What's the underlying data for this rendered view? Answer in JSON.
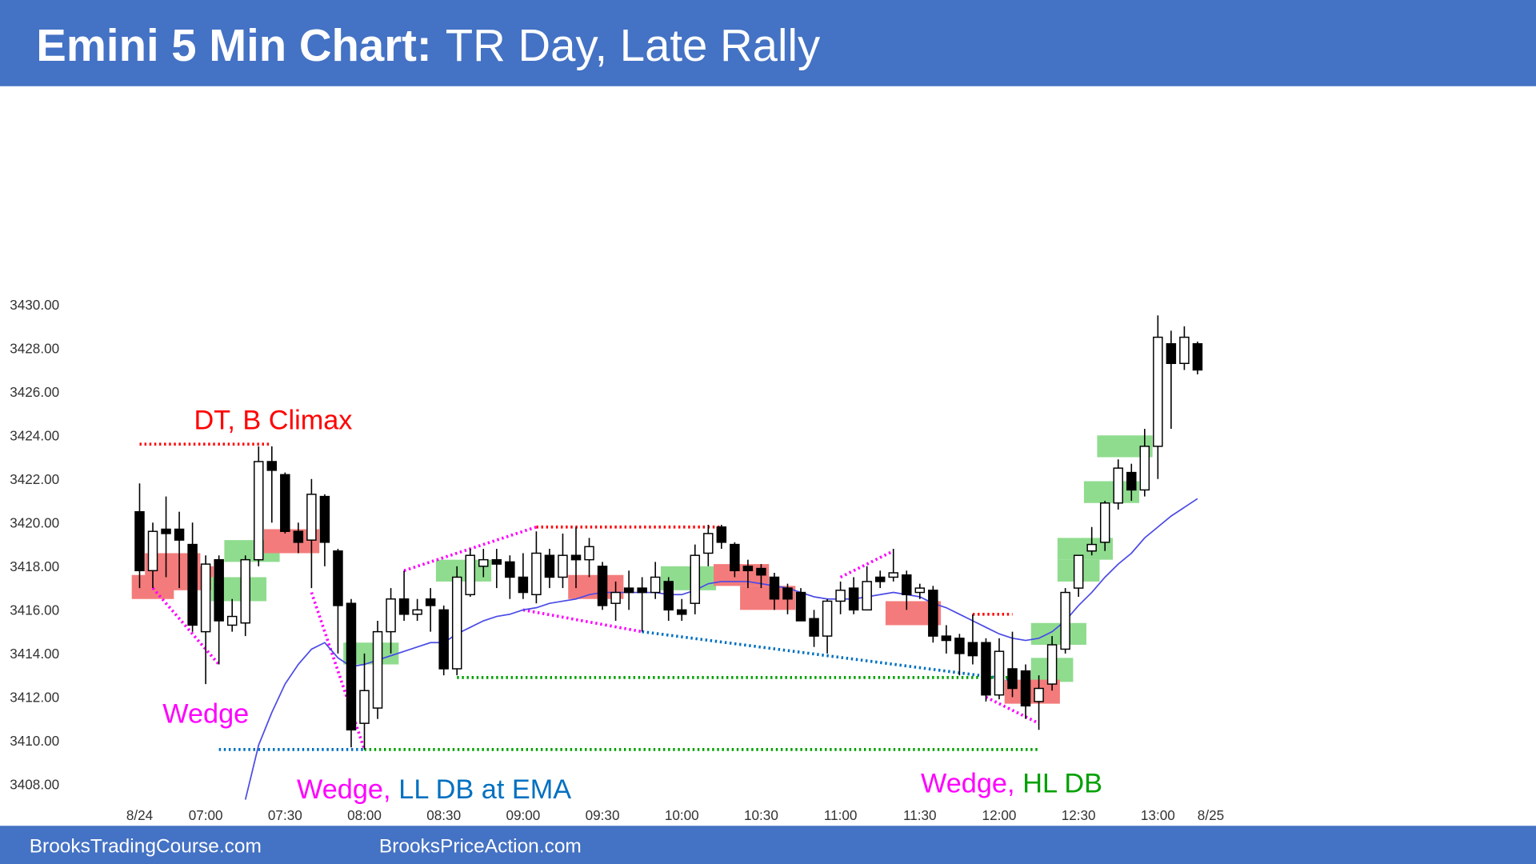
{
  "chart_data": {
    "type": "candlestick",
    "title": "Emini 5 Min Chart:",
    "subtitle": "TR Day, Late Rally",
    "categories": [
      "8/24",
      null,
      null,
      null,
      null,
      "07:00",
      null,
      null,
      null,
      null,
      null,
      "07:30",
      null,
      null,
      null,
      null,
      null,
      "08:00",
      null,
      null,
      null,
      null,
      null,
      "08:30",
      null,
      null,
      null,
      null,
      null,
      "09:00",
      null,
      null,
      null,
      null,
      null,
      "09:30",
      null,
      null,
      null,
      null,
      null,
      "10:00",
      null,
      null,
      null,
      null,
      null,
      "10:30",
      null,
      null,
      null,
      null,
      null,
      "11:00",
      null,
      null,
      null,
      null,
      null,
      "11:30",
      null,
      null,
      null,
      null,
      null,
      "12:00",
      null,
      null,
      null,
      null,
      null,
      "12:30",
      null,
      null,
      null,
      null,
      null,
      "13:00",
      null,
      null,
      null,
      "8/25"
    ],
    "open": [
      3420.5,
      3417.8,
      3419.7,
      3419.7,
      3419,
      3415,
      3418.3,
      3415.3,
      3415.4,
      3418.3,
      3422.8,
      3422.2,
      3419.6,
      3419.2,
      3421.2,
      3418.7,
      3416.3,
      3410.8,
      3411.5,
      3415,
      3416.5,
      3415.8,
      3416.5,
      3416,
      3413.3,
      3416.7,
      3418,
      3418.3,
      3418.2,
      3417.5,
      3416.7,
      3418.5,
      3417.5,
      3418.5,
      3418.3,
      3418,
      3416.3,
      3417,
      3417,
      3416.8,
      3417.3,
      3416,
      3416.3,
      3418.6,
      3419.8,
      3419,
      3418,
      3417.9,
      3417.5,
      3417,
      3416.8,
      3415.6,
      3414.8,
      3416.4,
      3417,
      3416,
      3417.5,
      3417.5,
      3417.6,
      3416.8,
      3416.9,
      3414.8,
      3414.7,
      3414.5,
      3414.5,
      3412.1,
      3413.3,
      3413.2,
      3411.8,
      3412.6,
      3414.2,
      3417,
      3418.7,
      3419.1,
      3420.9,
      3422.3,
      3421.5,
      3423.5,
      3428.2,
      3427.3,
      3428.2,
      null
    ],
    "high": [
      3421.8,
      3420,
      3421.2,
      3420.5,
      3420,
      3418.5,
      3418.5,
      3416.5,
      3418.5,
      3423.5,
      3423.5,
      3422.3,
      3420,
      3422,
      3421.3,
      3418.8,
      3416.5,
      3414,
      3415.5,
      3417,
      3417.8,
      3416.5,
      3417,
      3416.2,
      3418,
      3418.8,
      3418.8,
      3418.8,
      3418.5,
      3418.6,
      3419.6,
      3418.8,
      3419.5,
      3419.8,
      3419.3,
      3418.2,
      3417.3,
      3417.8,
      3417.5,
      3418.2,
      3417.5,
      3416.5,
      3419,
      3419.9,
      3419.9,
      3419.1,
      3418.3,
      3418.1,
      3417.7,
      3417.2,
      3417,
      3416,
      3416.5,
      3417.3,
      3417.5,
      3418,
      3417.8,
      3418.8,
      3417.8,
      3417.2,
      3417.1,
      3415.3,
      3414.9,
      3415.8,
      3414.7,
      3414.7,
      3415,
      3413.5,
      3413,
      3414.8,
      3417,
      3418.5,
      3419.8,
      3421,
      3422.9,
      3422.7,
      3424.3,
      3429.5,
      3428.8,
      3429,
      3428.3,
      null
    ],
    "low": [
      3417,
      3417,
      3417.5,
      3417,
      3415,
      3412.6,
      3413.5,
      3415,
      3414.8,
      3418,
      3420,
      3419.5,
      3418.6,
      3417,
      3418,
      3414,
      3409.7,
      3409.6,
      3411,
      3414,
      3415.5,
      3415.5,
      3415,
      3413,
      3413,
      3416.6,
      3417.5,
      3417,
      3416.5,
      3416.5,
      3416.3,
      3417,
      3417,
      3417,
      3417.5,
      3416,
      3415.5,
      3416,
      3415,
      3416.5,
      3415.5,
      3415.5,
      3415.8,
      3418,
      3418.8,
      3417.5,
      3417,
      3417,
      3416,
      3415.8,
      3415.5,
      3414.3,
      3414,
      3415.8,
      3415.8,
      3416,
      3417,
      3417.3,
      3416,
      3416.5,
      3414.5,
      3414,
      3413,
      3413.5,
      3411.8,
      3411.9,
      3412,
      3411,
      3410.5,
      3412.3,
      3414,
      3416.6,
      3418.5,
      3418.7,
      3420.6,
      3421,
      3421.2,
      3422,
      3424.3,
      3427,
      3426.8,
      null
    ],
    "close": [
      3417.8,
      3419.6,
      3419.5,
      3419.2,
      3415.3,
      3418.1,
      3415.5,
      3415.7,
      3418.3,
      3422.8,
      3422.4,
      3419.6,
      3419.1,
      3421.3,
      3419.1,
      3416.2,
      3410.5,
      3412.3,
      3415,
      3416.5,
      3415.8,
      3416,
      3416.2,
      3413.3,
      3417.5,
      3418.5,
      3418.3,
      3418.1,
      3417.5,
      3416.8,
      3418.6,
      3417.5,
      3418.5,
      3418.3,
      3418.9,
      3416.2,
      3416.8,
      3416.8,
      3416.8,
      3417.5,
      3416,
      3415.8,
      3418.5,
      3419.5,
      3419.1,
      3417.8,
      3417.8,
      3417.6,
      3416.5,
      3416.5,
      3415.5,
      3414.8,
      3416.4,
      3416.9,
      3416,
      3417.3,
      3417.3,
      3417.7,
      3416.7,
      3417,
      3414.8,
      3414.6,
      3414,
      3413.9,
      3412.1,
      3414.1,
      3412.4,
      3411.6,
      3412.4,
      3414.4,
      3416.8,
      3418.5,
      3419,
      3420.9,
      3422.5,
      3421.5,
      3423.5,
      3428.5,
      3427.3,
      3428.5,
      3427,
      null
    ],
    "ema": [
      null,
      null,
      null,
      null,
      null,
      null,
      null,
      null,
      3407.3,
      3409.8,
      3411.3,
      3412.6,
      3413.5,
      3414.2,
      3414.5,
      3413.8,
      3413.4,
      3413.5,
      3413.7,
      3413.9,
      3414.1,
      3414.3,
      3414.5,
      3414.5,
      3414.9,
      3415.2,
      3415.5,
      3415.7,
      3415.8,
      3416,
      3416.1,
      3416.3,
      3416.4,
      3416.5,
      3416.7,
      3416.8,
      3416.8,
      3416.8,
      3416.8,
      3416.8,
      3416.7,
      3416.7,
      3416.9,
      3417.2,
      3417.3,
      3417.3,
      3417.3,
      3417.2,
      3417.1,
      3417,
      3416.8,
      3416.6,
      3416.5,
      3416.5,
      3416.5,
      3416.6,
      3416.7,
      3416.8,
      3416.7,
      3416.6,
      3416.3,
      3416.1,
      3415.8,
      3415.5,
      3415.2,
      3414.9,
      3414.7,
      3414.6,
      3414.7,
      3415,
      3415.5,
      3416.2,
      3416.8,
      3417.5,
      3418.1,
      3418.6,
      3419.3,
      3419.8,
      3420.3,
      3420.7,
      3421.1,
      null
    ],
    "ema_color": "#4b4be6",
    "up_color": "#ffffff",
    "down_color": "#000000",
    "ylim": [
      3407,
      3437
    ],
    "yticks": [
      {
        "value": 3408,
        "label": "3408.00"
      },
      {
        "value": 3410,
        "label": "3410.00"
      },
      {
        "value": 3412,
        "label": "3412.00"
      },
      {
        "value": 3414,
        "label": "3414.00"
      },
      {
        "value": 3416,
        "label": "3416.00"
      },
      {
        "value": 3418,
        "label": "3418.00"
      },
      {
        "value": 3420,
        "label": "3420.00"
      },
      {
        "value": 3422,
        "label": "3422.00"
      },
      {
        "value": 3424,
        "label": "3424.00"
      },
      {
        "value": 3426,
        "label": "3426.00"
      },
      {
        "value": 3428,
        "label": "3428.00"
      },
      {
        "value": 3430,
        "label": "3430.00"
      }
    ],
    "grid": false,
    "highlights": [
      {
        "from": 0,
        "to": 2,
        "low": 3416.5,
        "high": 3417.6,
        "color": "#f47b7b"
      },
      {
        "from": 1,
        "to": 4,
        "low": 3417.5,
        "high": 3418.6,
        "color": "#f47b7b"
      },
      {
        "from": 3,
        "to": 5,
        "low": 3416.9,
        "high": 3418,
        "color": "#f47b7b"
      },
      {
        "from": 6,
        "to": 9,
        "low": 3416.4,
        "high": 3417.5,
        "color": "#8fdc8f"
      },
      {
        "from": 7,
        "to": 10,
        "low": 3418.2,
        "high": 3419.2,
        "color": "#8fdc8f"
      },
      {
        "from": 10,
        "to": 13,
        "low": 3418.6,
        "high": 3419.7,
        "color": "#f47b7b"
      },
      {
        "from": 16,
        "to": 19,
        "low": 3413.5,
        "high": 3414.5,
        "color": "#8fdc8f"
      },
      {
        "from": 23,
        "to": 26,
        "low": 3417.3,
        "high": 3418.3,
        "color": "#8fdc8f"
      },
      {
        "from": 33,
        "to": 36,
        "low": 3416.5,
        "high": 3417.6,
        "color": "#f47b7b"
      },
      {
        "from": 40,
        "to": 43,
        "low": 3416.9,
        "high": 3418,
        "color": "#8fdc8f"
      },
      {
        "from": 44,
        "to": 47,
        "low": 3417.1,
        "high": 3418.1,
        "color": "#f47b7b"
      },
      {
        "from": 46,
        "to": 49,
        "low": 3416,
        "high": 3417.1,
        "color": "#f47b7b"
      },
      {
        "from": 57,
        "to": 60,
        "low": 3415.3,
        "high": 3416.4,
        "color": "#f47b7b"
      },
      {
        "from": 68,
        "to": 71,
        "low": 3414.4,
        "high": 3415.4,
        "color": "#8fdc8f"
      },
      {
        "from": 68,
        "to": 70,
        "low": 3412.7,
        "high": 3413.8,
        "color": "#8fdc8f"
      },
      {
        "from": 66,
        "to": 69,
        "low": 3411.7,
        "high": 3412.8,
        "color": "#f47b7b"
      },
      {
        "from": 70,
        "to": 72,
        "low": 3417.3,
        "high": 3418.3,
        "color": "#8fdc8f"
      },
      {
        "from": 70,
        "to": 73,
        "low": 3418.3,
        "high": 3419.3,
        "color": "#8fdc8f"
      },
      {
        "from": 72,
        "to": 75,
        "low": 3420.9,
        "high": 3421.9,
        "color": "#8fdc8f"
      },
      {
        "from": 73,
        "to": 76,
        "low": 3423,
        "high": 3424,
        "color": "#8fdc8f"
      }
    ],
    "lines": [
      {
        "from": [
          0,
          3423.6
        ],
        "to": [
          10,
          3423.6
        ],
        "color": "#ff0000"
      },
      {
        "from": [
          30,
          3419.8
        ],
        "to": [
          44,
          3419.8
        ],
        "color": "#ff0000"
      },
      {
        "from": [
          63,
          3415.8
        ],
        "to": [
          66,
          3415.8
        ],
        "color": "#ff0000"
      },
      {
        "from": [
          1,
          3417
        ],
        "to": [
          6,
          3413.5
        ],
        "color": "#ff00ff"
      },
      {
        "from": [
          13,
          3416.8
        ],
        "to": [
          17,
          3409.6
        ],
        "color": "#ff00ff"
      },
      {
        "from": [
          20,
          3417.8
        ],
        "to": [
          30,
          3419.8
        ],
        "color": "#ff00ff"
      },
      {
        "from": [
          29,
          3416
        ],
        "to": [
          38,
          3415
        ],
        "color": "#ff00ff"
      },
      {
        "from": [
          53,
          3417.5
        ],
        "to": [
          57,
          3418.7
        ],
        "color": "#ff00ff"
      },
      {
        "from": [
          64,
          3412
        ],
        "to": [
          68,
          3410.8
        ],
        "color": "#ff00ff"
      },
      {
        "from": [
          38,
          3415
        ],
        "to": [
          66,
          3412.8
        ],
        "color": "#0070c0"
      },
      {
        "from": [
          6,
          3409.6
        ],
        "to": [
          17,
          3409.6
        ],
        "color": "#0070c0"
      },
      {
        "from": [
          24,
          3412.9
        ],
        "to": [
          66,
          3412.9
        ],
        "color": "#00a000"
      },
      {
        "from": [
          17,
          3409.6
        ],
        "to": [
          68,
          3409.6
        ],
        "color": "#00a000"
      }
    ],
    "annotations": [
      {
        "parts": [
          {
            "text": "DT, B Climax",
            "color": "#ff0000"
          }
        ]
      },
      {
        "parts": [
          {
            "text": "Wedge",
            "color": "#ff00ff"
          }
        ]
      },
      {
        "parts": [
          {
            "text": "Wedge,",
            "color": "#ff00ff"
          },
          {
            "text": "LL DB at EMA",
            "color": "#0070c0"
          }
        ]
      },
      {
        "parts": [
          {
            "text": "Wedge,",
            "color": "#ff00ff"
          },
          {
            "text": "HL DB",
            "color": "#00a000"
          }
        ]
      }
    ]
  },
  "footer": [
    "BrooksTradingCourse.com",
    "BrooksPriceAction.com"
  ]
}
